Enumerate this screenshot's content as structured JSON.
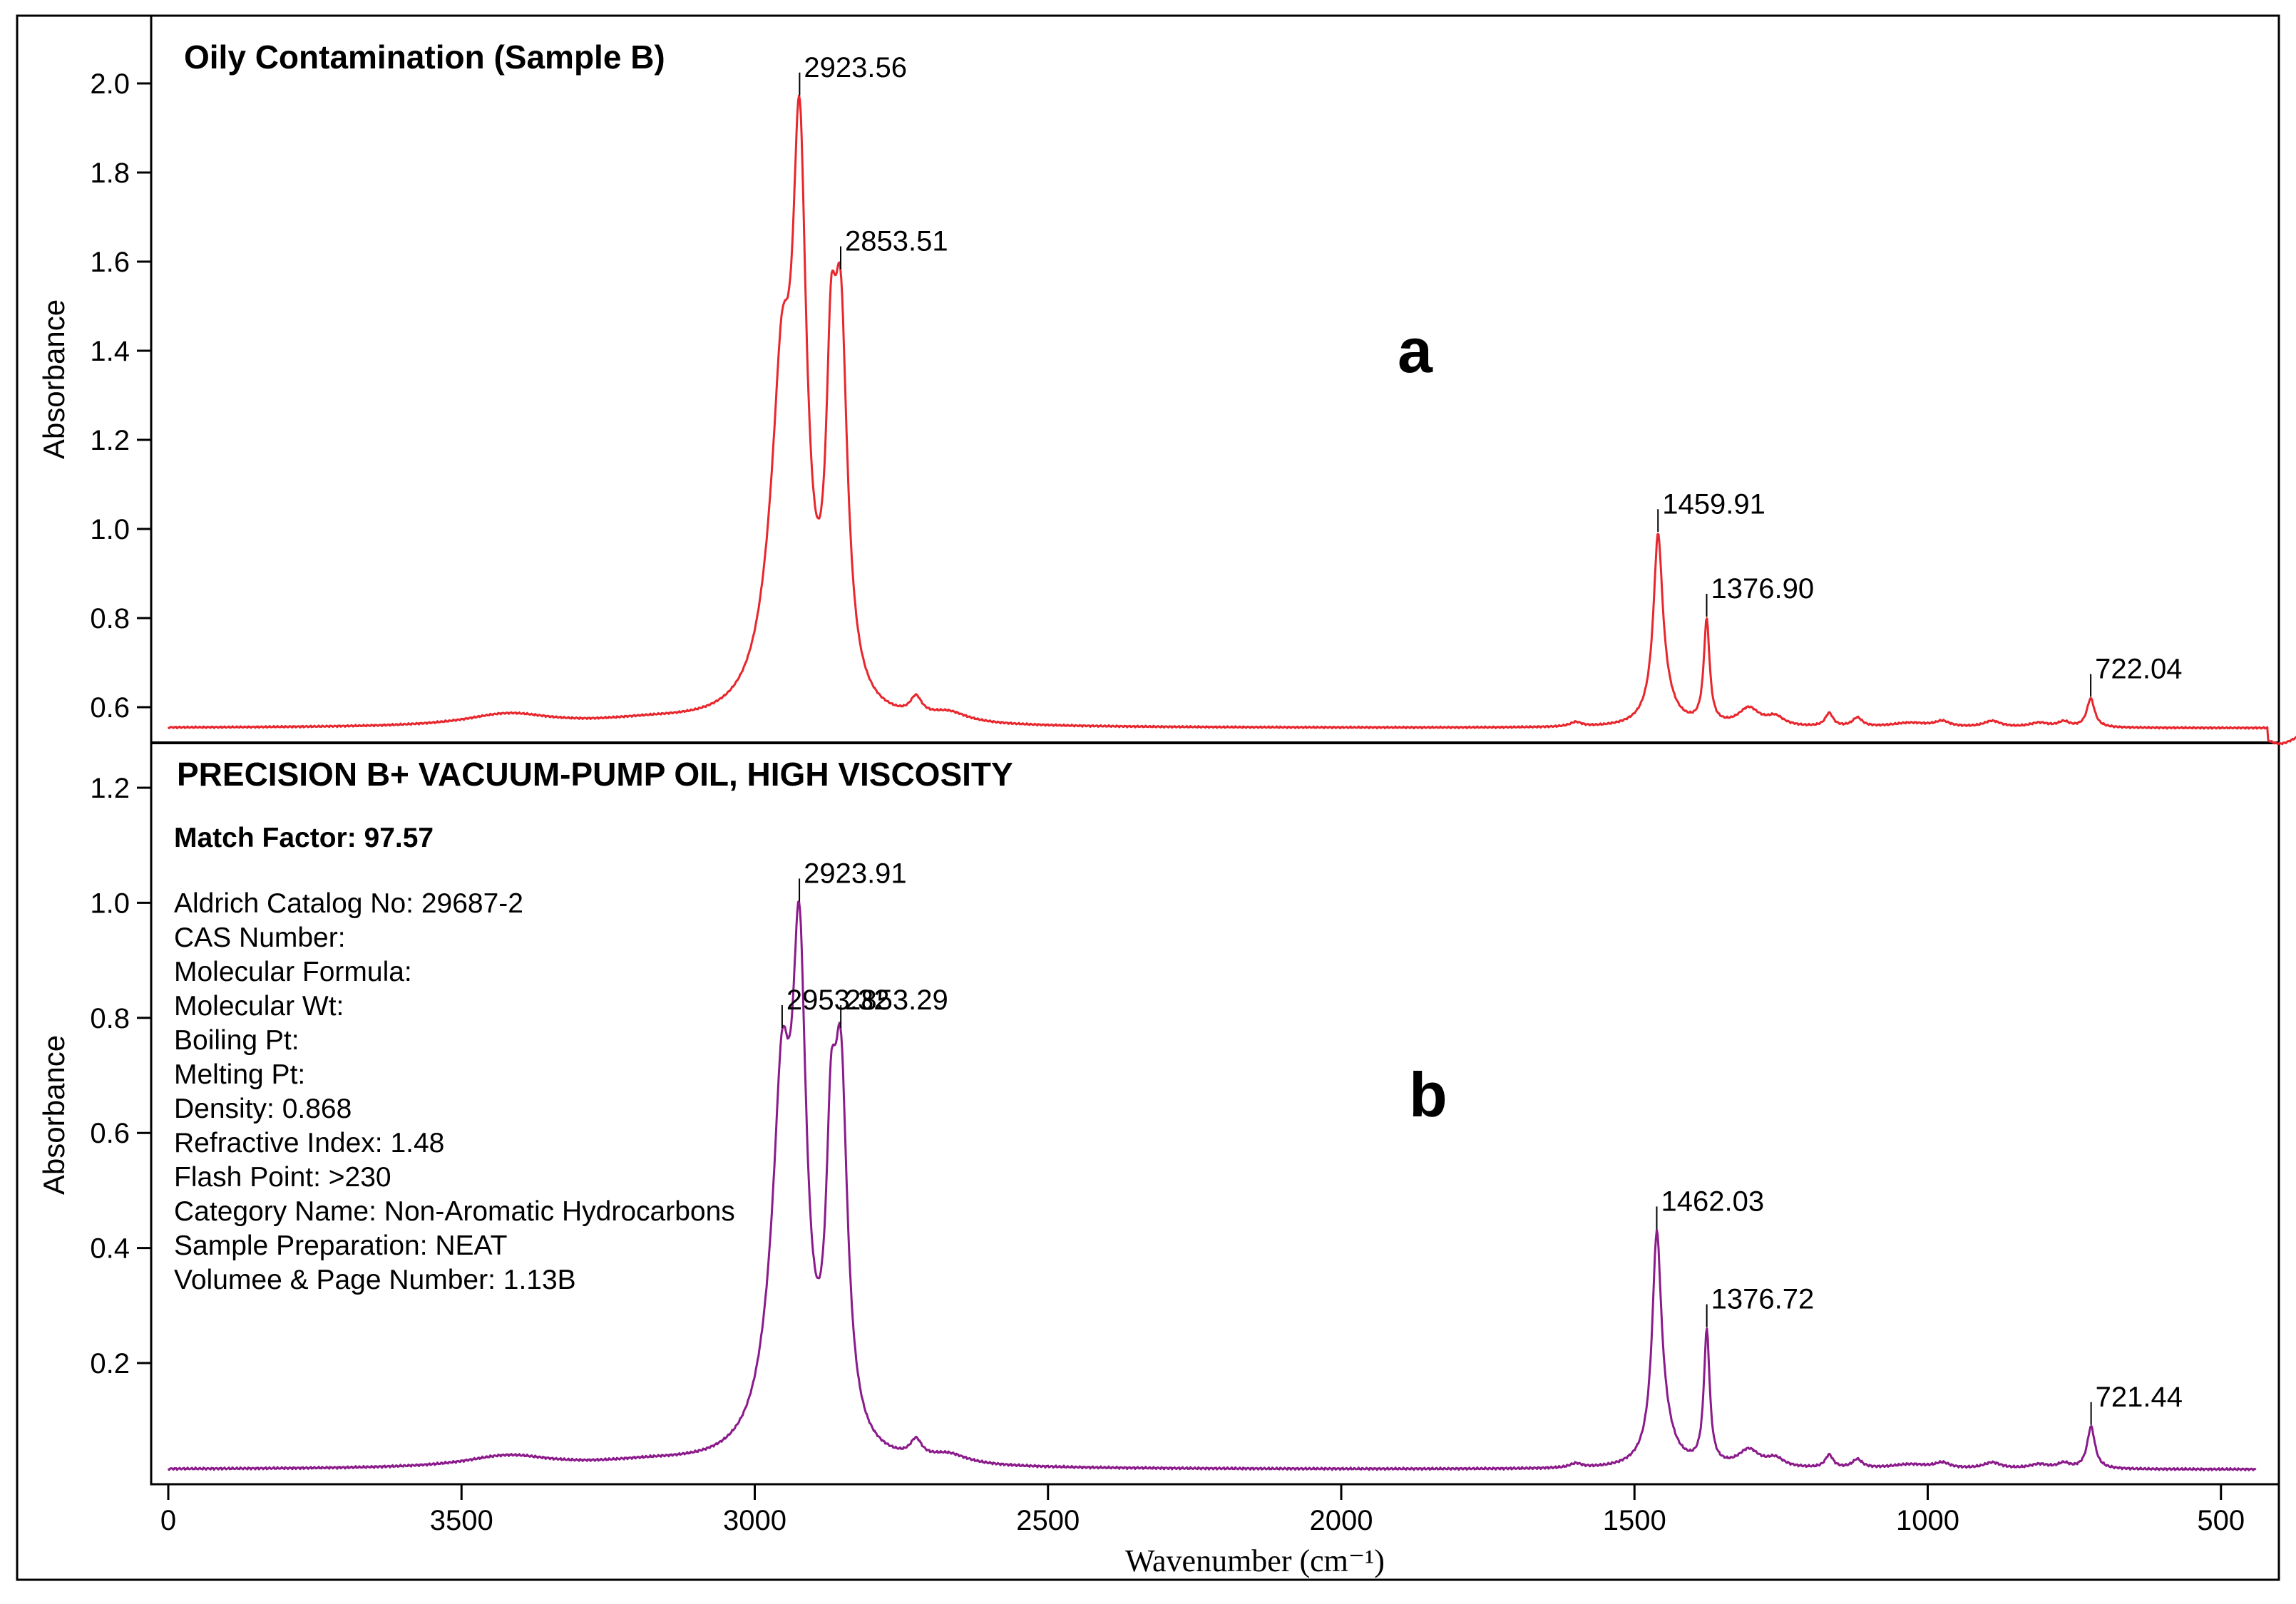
{
  "chart_data": [
    {
      "type": "line",
      "panel_letter": "a",
      "title": "Oily Contamination (Sample B)",
      "ylabel": "Absorbance",
      "xlabel": "",
      "xlim": [
        4000,
        350
      ],
      "ylim": [
        0.5,
        2.15
      ],
      "yticks": [
        "2.0",
        "1.8",
        "1.6",
        "1.4",
        "1.2",
        "1.0",
        "0.8",
        "0.6"
      ],
      "color": "#e8262d",
      "baseline": 0.553,
      "peaks": [
        {
          "x": 2953.3,
          "y": 1.49,
          "label": ""
        },
        {
          "x": 2923.56,
          "y": 1.97,
          "label": "2923.56"
        },
        {
          "x": 2853.51,
          "y": 1.58,
          "label": "2853.51"
        },
        {
          "x": 1459.91,
          "y": 0.99,
          "label": "1459.91"
        },
        {
          "x": 1376.9,
          "y": 0.8,
          "label": "1376.90"
        },
        {
          "x": 722.04,
          "y": 0.62,
          "label": "722.04"
        }
      ],
      "series": [
        {
          "name": "Oily Contamination (Sample B)"
        }
      ]
    },
    {
      "type": "line",
      "panel_letter": "b",
      "title": "PRECISION B+ VACUUM-PUMP OIL, HIGH VISCOSITY",
      "ylabel": "Absorbance",
      "xlabel": "Wavenumber (cm⁻¹)",
      "xlim": [
        4000,
        350
      ],
      "ylim": [
        0.0,
        1.28
      ],
      "yticks": [
        "1.2",
        "1.0",
        "0.8",
        "0.6",
        "0.4",
        "0.2"
      ],
      "xticks": [
        "0",
        "3500",
        "3000",
        "2500",
        "2000",
        "1500",
        "1000",
        "500"
      ],
      "color": "#8b1a8b",
      "baseline": 0.015,
      "peaks": [
        {
          "x": 2953.32,
          "y": 0.78,
          "label": "2953.32"
        },
        {
          "x": 2923.91,
          "y": 1.0,
          "label": "2923.91"
        },
        {
          "x": 2853.29,
          "y": 0.78,
          "label": "2853.29"
        },
        {
          "x": 1462.03,
          "y": 0.43,
          "label": "1462.03"
        },
        {
          "x": 1376.72,
          "y": 0.26,
          "label": "1376.72"
        },
        {
          "x": 721.44,
          "y": 0.09,
          "label": "721.44"
        }
      ],
      "series": [
        {
          "name": "PRECISION B+ VACUUM-PUMP OIL, HIGH VISCOSITY"
        }
      ]
    }
  ],
  "info": {
    "match_factor": "Match Factor: 97.57",
    "lines": [
      "Aldrich Catalog No:  29687-2",
      "CAS Number:",
      "Molecular Formula:",
      "Molecular Wt:",
      "Boiling Pt:",
      "Melting Pt:",
      "Density:  0.868",
      "Refractive Index:  1.48",
      "Flash Point:  >230",
      "Category Name:  Non-Aromatic Hydrocarbons",
      "Sample Preparation:  NEAT",
      "Volumee & Page Number:  1.13B"
    ]
  }
}
